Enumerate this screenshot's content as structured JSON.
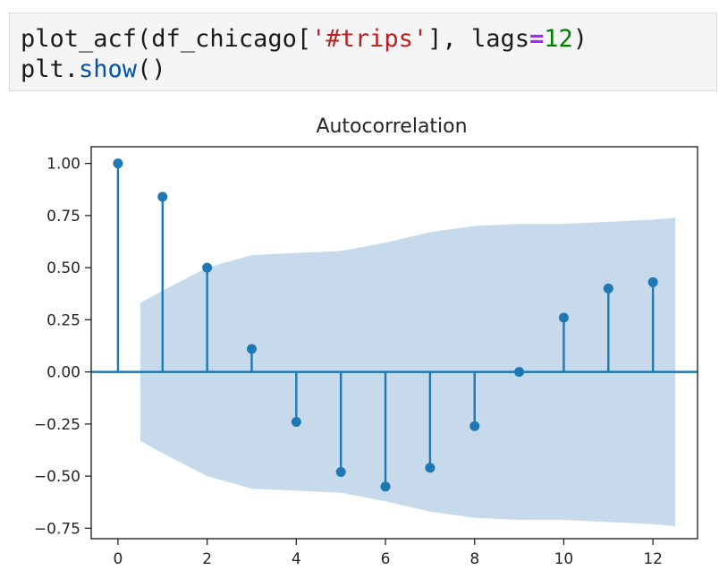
{
  "code_cell": {
    "line1": {
      "func": "plot_acf",
      "open": "(df_chicago[",
      "string": "'#trips'",
      "mid": "], lags",
      "eq": "=",
      "num": "12",
      "close": ")"
    },
    "line2": {
      "obj": "plt.",
      "method": "show",
      "parens": "()"
    }
  },
  "colors": {
    "series": "#1f77b4",
    "confidence_band": "#c6daec",
    "axes": "#262626"
  },
  "chart_data": {
    "type": "scatter",
    "title": "Autocorrelation",
    "xlabel": "",
    "ylabel": "",
    "xlim": [
      -0.6,
      13.0
    ],
    "ylim": [
      -0.8,
      1.08
    ],
    "x_ticks": [
      0,
      2,
      4,
      6,
      8,
      10,
      12
    ],
    "x_tick_labels": [
      "0",
      "2",
      "4",
      "6",
      "8",
      "10",
      "12"
    ],
    "y_ticks": [
      1.0,
      0.75,
      0.5,
      0.25,
      0.0,
      -0.25,
      -0.5,
      -0.75
    ],
    "y_tick_labels": [
      "1.00",
      "0.75",
      "0.50",
      "0.25",
      "0.00",
      "−0.25",
      "−0.50",
      "−0.75"
    ],
    "grid": false,
    "lags": [
      0,
      1,
      2,
      3,
      4,
      5,
      6,
      7,
      8,
      9,
      10,
      11,
      12
    ],
    "values": [
      1.0,
      0.84,
      0.5,
      0.11,
      -0.24,
      -0.48,
      -0.55,
      -0.46,
      -0.26,
      0.0,
      0.26,
      0.4,
      0.43
    ],
    "confidence_band": {
      "x": [
        0.5,
        1,
        2,
        3,
        4,
        5,
        6,
        7,
        8,
        9,
        10,
        11,
        12,
        12.5
      ],
      "upper": [
        0.33,
        0.39,
        0.5,
        0.56,
        0.57,
        0.58,
        0.62,
        0.67,
        0.7,
        0.71,
        0.71,
        0.72,
        0.73,
        0.74
      ],
      "lower": [
        -0.33,
        -0.39,
        -0.5,
        -0.56,
        -0.57,
        -0.58,
        -0.62,
        -0.67,
        -0.7,
        -0.71,
        -0.71,
        -0.72,
        -0.73,
        -0.74
      ]
    }
  }
}
